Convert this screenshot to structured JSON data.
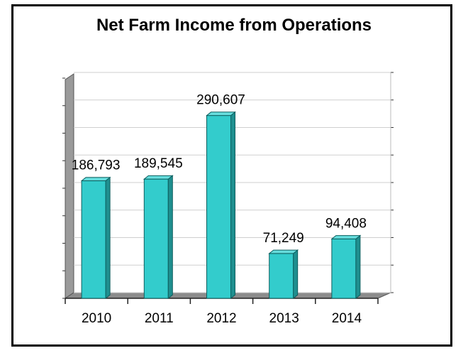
{
  "chart_data": {
    "type": "bar",
    "title": "Net Farm Income from Operations",
    "categories": [
      "2010",
      "2011",
      "2012",
      "2013",
      "2014"
    ],
    "values": [
      186793,
      189545,
      290607,
      71249,
      94408
    ],
    "data_labels": [
      "186,793",
      "189,545",
      "290,607",
      "71,249",
      "94,408"
    ],
    "xlabel": "",
    "ylabel": "",
    "ylim": [
      0,
      350000
    ],
    "grid": true,
    "three_d": true,
    "colors": {
      "bar": "#33cccc",
      "bar_side": "#1f8f8f",
      "bar_top": "#66dddd",
      "wall": "#9a9a9a",
      "floor": "#8c8c8c"
    }
  }
}
